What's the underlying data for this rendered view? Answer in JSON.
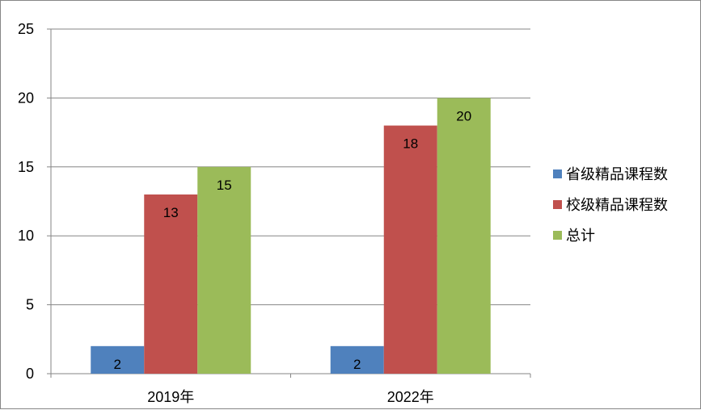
{
  "chart_data": {
    "type": "bar",
    "categories": [
      "2019年",
      "2022年"
    ],
    "series": [
      {
        "name": "省级精品课程数",
        "values": [
          2,
          2
        ],
        "color": "#4F81BD"
      },
      {
        "name": "校级精品课程数",
        "values": [
          13,
          18
        ],
        "color": "#C0504D"
      },
      {
        "name": "总计",
        "values": [
          15,
          20
        ],
        "color": "#9BBB59"
      }
    ],
    "ylim": [
      0,
      25
    ],
    "yticks": [
      "0",
      "5",
      "10",
      "15",
      "20",
      "25"
    ],
    "grid": true,
    "legend_position": "right",
    "data_labels": true
  }
}
